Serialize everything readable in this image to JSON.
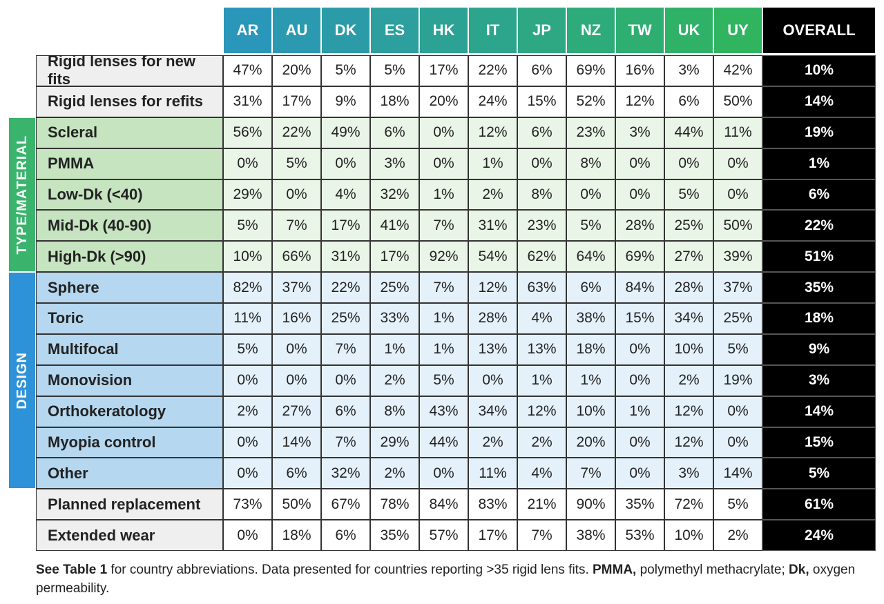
{
  "header": {
    "columns": [
      "AR",
      "AU",
      "DK",
      "ES",
      "HK",
      "IT",
      "JP",
      "NZ",
      "TW",
      "UK",
      "UY"
    ],
    "overall": "OVERALL"
  },
  "sections": [
    {
      "rows": [
        {
          "label": "Rigid lenses for new fits",
          "values": [
            "47%",
            "20%",
            "5%",
            "5%",
            "17%",
            "22%",
            "6%",
            "69%",
            "16%",
            "3%",
            "42%"
          ],
          "overall": "10%"
        },
        {
          "label": "Rigid lenses for refits",
          "values": [
            "31%",
            "17%",
            "9%",
            "18%",
            "20%",
            "24%",
            "15%",
            "52%",
            "12%",
            "6%",
            "50%"
          ],
          "overall": "14%"
        }
      ]
    },
    {
      "group": "TYPE/MATERIAL",
      "rows": [
        {
          "label": "Scleral",
          "values": [
            "56%",
            "22%",
            "49%",
            "6%",
            "0%",
            "12%",
            "6%",
            "23%",
            "3%",
            "44%",
            "11%"
          ],
          "overall": "19%"
        },
        {
          "label": "PMMA",
          "values": [
            "0%",
            "5%",
            "0%",
            "3%",
            "0%",
            "1%",
            "0%",
            "8%",
            "0%",
            "0%",
            "0%"
          ],
          "overall": "1%"
        },
        {
          "label": "Low-Dk (<40)",
          "values": [
            "29%",
            "0%",
            "4%",
            "32%",
            "1%",
            "2%",
            "8%",
            "0%",
            "0%",
            "5%",
            "0%"
          ],
          "overall": "6%"
        },
        {
          "label": "Mid-Dk (40-90)",
          "values": [
            "5%",
            "7%",
            "17%",
            "41%",
            "7%",
            "31%",
            "23%",
            "5%",
            "28%",
            "25%",
            "50%"
          ],
          "overall": "22%"
        },
        {
          "label": "High-Dk (>90)",
          "values": [
            "10%",
            "66%",
            "31%",
            "17%",
            "92%",
            "54%",
            "62%",
            "64%",
            "69%",
            "27%",
            "39%"
          ],
          "overall": "51%"
        }
      ]
    },
    {
      "group": "DESIGN",
      "rows": [
        {
          "label": "Sphere",
          "values": [
            "82%",
            "37%",
            "22%",
            "25%",
            "7%",
            "12%",
            "63%",
            "6%",
            "84%",
            "28%",
            "37%"
          ],
          "overall": "35%"
        },
        {
          "label": "Toric",
          "values": [
            "11%",
            "16%",
            "25%",
            "33%",
            "1%",
            "28%",
            "4%",
            "38%",
            "15%",
            "34%",
            "25%"
          ],
          "overall": "18%"
        },
        {
          "label": "Multifocal",
          "values": [
            "5%",
            "0%",
            "7%",
            "1%",
            "1%",
            "13%",
            "13%",
            "18%",
            "0%",
            "10%",
            "5%"
          ],
          "overall": "9%"
        },
        {
          "label": "Monovision",
          "values": [
            "0%",
            "0%",
            "0%",
            "2%",
            "5%",
            "0%",
            "1%",
            "1%",
            "0%",
            "2%",
            "19%"
          ],
          "overall": "3%"
        },
        {
          "label": "Orthokeratology",
          "values": [
            "2%",
            "27%",
            "6%",
            "8%",
            "43%",
            "34%",
            "12%",
            "10%",
            "1%",
            "12%",
            "0%"
          ],
          "overall": "14%"
        },
        {
          "label": "Myopia control",
          "values": [
            "0%",
            "14%",
            "7%",
            "29%",
            "44%",
            "2%",
            "2%",
            "20%",
            "0%",
            "12%",
            "0%"
          ],
          "overall": "15%"
        },
        {
          "label": "Other",
          "values": [
            "0%",
            "6%",
            "32%",
            "2%",
            "0%",
            "11%",
            "4%",
            "7%",
            "0%",
            "3%",
            "14%"
          ],
          "overall": "5%"
        }
      ]
    },
    {
      "rows": [
        {
          "label": "Planned replacement",
          "values": [
            "73%",
            "50%",
            "67%",
            "78%",
            "84%",
            "83%",
            "21%",
            "90%",
            "35%",
            "72%",
            "5%"
          ],
          "overall": "61%"
        },
        {
          "label": "Extended wear",
          "values": [
            "0%",
            "18%",
            "6%",
            "35%",
            "57%",
            "17%",
            "7%",
            "38%",
            "53%",
            "10%",
            "2%"
          ],
          "overall": "24%"
        }
      ]
    }
  ],
  "footnote": [
    {
      "text": "See Table 1",
      "bold": true
    },
    {
      "text": " for country abbreviations. Data presented for countries reporting >35 rigid lens fits. ",
      "bold": false
    },
    {
      "text": "PMMA,",
      "bold": true
    },
    {
      "text": " polymethyl methacrylate; ",
      "bold": false
    },
    {
      "text": "Dk,",
      "bold": true
    },
    {
      "text": " oxygen permeability.",
      "bold": false
    }
  ]
}
